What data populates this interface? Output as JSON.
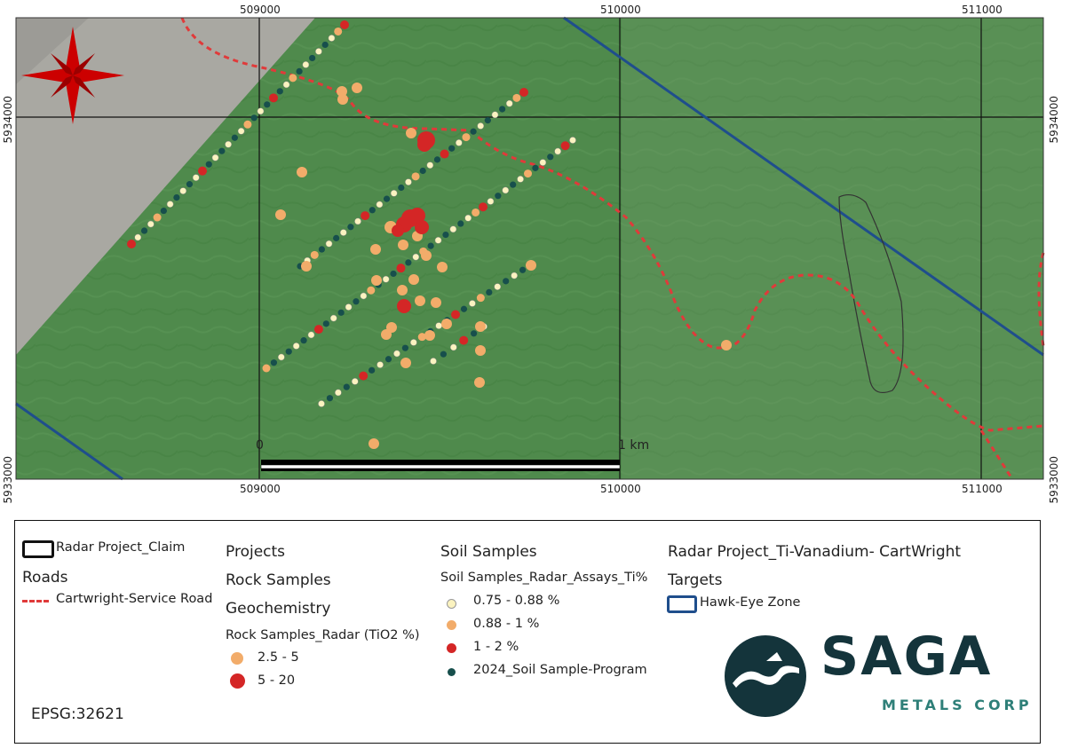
{
  "map": {
    "x_ticks": [
      "509000",
      "510000",
      "511000"
    ],
    "y_ticks": [
      "5934000",
      "5933000"
    ],
    "scale_bar": {
      "start_label": "0",
      "end_label": "1 km"
    },
    "colors": {
      "vegetation": "#4f8a4c",
      "barren": "#a9a8a2",
      "road": "#e03a3a",
      "hawk_eye_line": "#1f4e8c",
      "soil_low": "#fbf3c0",
      "soil_mid": "#f2ac6a",
      "soil_high": "#d42626",
      "soil_program": "#174f4c",
      "rock_low": "#f2ac6a",
      "rock_high": "#d42626",
      "north_arrow": "#cc0000"
    },
    "north_arrow_icon": "compass-star-icon"
  },
  "legend": {
    "claim_label": "Radar Project_Claim",
    "roads_heading": "Roads",
    "road_label": "Cartwright-Service Road",
    "projects_heading": "Projects",
    "rock_heading": "Rock Samples",
    "geochem_heading": "Geochemistry",
    "rock_sub": "Rock Samples_Radar (TiO2 %)",
    "rock_items": [
      "2.5 - 5",
      "5 - 20"
    ],
    "soil_heading": "Soil Samples",
    "soil_sub": "Soil Samples_Radar_Assays_Ti%",
    "soil_items": [
      "0.75 - 0.88 %",
      "0.88 - 1 %",
      "1 - 2 %",
      "2024_Soil Sample-Program"
    ],
    "project_title": "Radar Project_Ti-Vanadium- CartWright",
    "targets_heading": "Targets",
    "target_label": "Hawk-Eye Zone",
    "epsg": "EPSG:32621"
  },
  "logo": {
    "name": "SAGA",
    "subtitle": "METALS CORP",
    "color": "#14343b"
  }
}
